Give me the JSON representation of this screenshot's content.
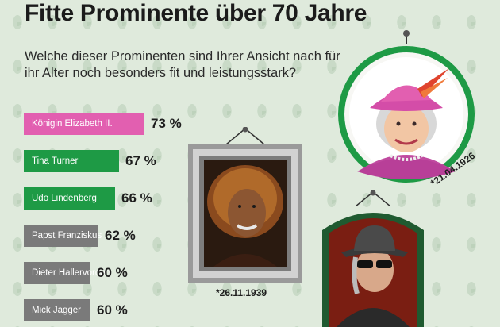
{
  "header": {
    "title": "Fitte Prominente über 70 Jahre",
    "question": "Welche dieser Prominenten sind Ihrer Ansicht nach für ihr Alter noch besonders fit und leistungsstark?"
  },
  "chart_data": {
    "type": "bar",
    "orientation": "horizontal",
    "categories": [
      "Königin Elizabeth II.",
      "Tina Turner",
      "Udo Lindenberg",
      "Papst Franziskus",
      "Dieter Hallervorden",
      "Mick Jagger"
    ],
    "values": [
      73,
      67,
      66,
      62,
      60,
      60
    ],
    "value_labels": [
      "73 %",
      "67 %",
      "66 %",
      "62 %",
      "60 %",
      "60 %"
    ],
    "unit": "%",
    "bar_colors": [
      "#e25fb0",
      "#1e9a45",
      "#1e9a45",
      "#7a7a7a",
      "#7a7a7a",
      "#7a7a7a"
    ],
    "title": "Fitte Prominente über 70 Jahre"
  },
  "portraits": {
    "queen_date": "*21.04.1926",
    "tina_date": "*26.11.1939"
  },
  "colors": {
    "pink": "#e25fb0",
    "green": "#1e9a45",
    "gray": "#7a7a7a",
    "background": "#dfeadc"
  }
}
